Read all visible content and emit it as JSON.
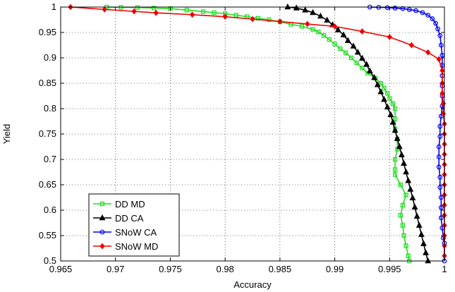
{
  "chart_data": {
    "type": "line",
    "title": "",
    "xlabel": "Accuracy",
    "ylabel": "Yield",
    "xlim": [
      0.965,
      1.0
    ],
    "ylim": [
      0.5,
      1.0
    ],
    "grid": true,
    "legend_position": "bottom-left",
    "x_ticks": [
      "0.965",
      "0.97",
      "0.975",
      "0.98",
      "0.985",
      "0.99",
      "0.995",
      "1"
    ],
    "y_ticks": [
      "0.5",
      "0.55",
      "0.6",
      "0.65",
      "0.7",
      "0.75",
      "0.8",
      "0.85",
      "0.9",
      "0.95",
      "1"
    ],
    "series": [
      {
        "name": "DD MD",
        "color": "#22dd22",
        "marker": "square",
        "points": [
          [
            0.9692,
            1.0
          ],
          [
            0.9705,
            0.9995
          ],
          [
            0.972,
            0.999
          ],
          [
            0.9735,
            0.998
          ],
          [
            0.975,
            0.997
          ],
          [
            0.9765,
            0.994
          ],
          [
            0.978,
            0.991
          ],
          [
            0.979,
            0.989
          ],
          [
            0.98,
            0.987
          ],
          [
            0.981,
            0.984
          ],
          [
            0.982,
            0.981
          ],
          [
            0.983,
            0.978
          ],
          [
            0.984,
            0.975
          ],
          [
            0.985,
            0.971
          ],
          [
            0.986,
            0.966
          ],
          [
            0.987,
            0.962
          ],
          [
            0.988,
            0.956
          ],
          [
            0.9885,
            0.951
          ],
          [
            0.989,
            0.944
          ],
          [
            0.9895,
            0.936
          ],
          [
            0.99,
            0.927
          ],
          [
            0.9905,
            0.918
          ],
          [
            0.991,
            0.91
          ],
          [
            0.9915,
            0.9
          ],
          [
            0.992,
            0.89
          ],
          [
            0.9925,
            0.88
          ],
          [
            0.993,
            0.87
          ],
          [
            0.9937,
            0.86
          ],
          [
            0.9942,
            0.85
          ],
          [
            0.9945,
            0.84
          ],
          [
            0.9948,
            0.83
          ],
          [
            0.995,
            0.82
          ],
          [
            0.9953,
            0.81
          ],
          [
            0.9955,
            0.8
          ],
          [
            0.9955,
            0.78
          ],
          [
            0.9955,
            0.76
          ],
          [
            0.9957,
            0.74
          ],
          [
            0.9957,
            0.72
          ],
          [
            0.9955,
            0.7
          ],
          [
            0.9955,
            0.68
          ],
          [
            0.9955,
            0.67
          ],
          [
            0.996,
            0.65
          ],
          [
            0.9965,
            0.63
          ],
          [
            0.9962,
            0.61
          ],
          [
            0.996,
            0.59
          ],
          [
            0.9962,
            0.57
          ],
          [
            0.9963,
            0.55
          ],
          [
            0.9965,
            0.53
          ],
          [
            0.9967,
            0.51
          ],
          [
            0.9968,
            0.5
          ]
        ]
      },
      {
        "name": "DD CA",
        "color": "#000000",
        "marker": "triangle",
        "points": [
          [
            0.9857,
            1.0
          ],
          [
            0.9865,
            0.998
          ],
          [
            0.9873,
            0.994
          ],
          [
            0.988,
            0.989
          ],
          [
            0.9887,
            0.982
          ],
          [
            0.9893,
            0.974
          ],
          [
            0.9898,
            0.965
          ],
          [
            0.9903,
            0.955
          ],
          [
            0.9908,
            0.945
          ],
          [
            0.9912,
            0.934
          ],
          [
            0.9917,
            0.923
          ],
          [
            0.9921,
            0.911
          ],
          [
            0.9925,
            0.899
          ],
          [
            0.9929,
            0.887
          ],
          [
            0.9932,
            0.874
          ],
          [
            0.9936,
            0.861
          ],
          [
            0.9939,
            0.847
          ],
          [
            0.9942,
            0.833
          ],
          [
            0.9945,
            0.818
          ],
          [
            0.9948,
            0.803
          ],
          [
            0.9951,
            0.788
          ],
          [
            0.9953,
            0.773
          ],
          [
            0.9955,
            0.757
          ],
          [
            0.9957,
            0.741
          ],
          [
            0.9959,
            0.725
          ],
          [
            0.9961,
            0.709
          ],
          [
            0.9963,
            0.692
          ],
          [
            0.9965,
            0.675
          ],
          [
            0.9967,
            0.658
          ],
          [
            0.9969,
            0.641
          ],
          [
            0.9971,
            0.624
          ],
          [
            0.9973,
            0.606
          ],
          [
            0.9975,
            0.588
          ],
          [
            0.9977,
            0.57
          ],
          [
            0.9979,
            0.552
          ],
          [
            0.9981,
            0.534
          ],
          [
            0.9983,
            0.516
          ],
          [
            0.9985,
            0.5
          ]
        ]
      },
      {
        "name": "SNoW CA",
        "color": "#0000ee",
        "marker": "circle",
        "points": [
          [
            0.9932,
            1.0
          ],
          [
            0.994,
            0.9995
          ],
          [
            0.9948,
            0.999
          ],
          [
            0.9955,
            0.998
          ],
          [
            0.9962,
            0.997
          ],
          [
            0.9968,
            0.995
          ],
          [
            0.9974,
            0.993
          ],
          [
            0.998,
            0.989
          ],
          [
            0.9985,
            0.984
          ],
          [
            0.9989,
            0.977
          ],
          [
            0.9992,
            0.968
          ],
          [
            0.9994,
            0.957
          ],
          [
            0.9996,
            0.944
          ],
          [
            0.9997,
            0.925
          ],
          [
            0.9998,
            0.905
          ],
          [
            0.9998,
            0.885
          ],
          [
            0.9998,
            0.865
          ],
          [
            0.9998,
            0.845
          ],
          [
            0.9998,
            0.825
          ],
          [
            0.9998,
            0.805
          ],
          [
            0.9997,
            0.785
          ],
          [
            0.9996,
            0.765
          ],
          [
            0.9996,
            0.745
          ],
          [
            0.9995,
            0.725
          ],
          [
            0.9995,
            0.705
          ],
          [
            0.9995,
            0.685
          ],
          [
            0.9996,
            0.665
          ],
          [
            0.9996,
            0.645
          ],
          [
            0.9997,
            0.625
          ],
          [
            0.9997,
            0.605
          ],
          [
            0.9997,
            0.585
          ],
          [
            0.9998,
            0.565
          ],
          [
            0.9999,
            0.545
          ],
          [
            1.0,
            0.535
          ],
          [
            1.0,
            0.5
          ]
        ]
      },
      {
        "name": "SNoW MD",
        "color": "#ee0000",
        "marker": "diamond",
        "points": [
          [
            0.9659,
            1.0
          ],
          [
            0.969,
            0.9953
          ],
          [
            0.9717,
            0.9915
          ],
          [
            0.9737,
            0.9886
          ],
          [
            0.977,
            0.985
          ],
          [
            0.98,
            0.981
          ],
          [
            0.9825,
            0.9762
          ],
          [
            0.985,
            0.9715
          ],
          [
            0.9875,
            0.9666
          ],
          [
            0.99,
            0.962
          ],
          [
            0.9925,
            0.952
          ],
          [
            0.995,
            0.941
          ],
          [
            0.997,
            0.925
          ],
          [
            0.9985,
            0.9107
          ],
          [
            0.9995,
            0.8974
          ],
          [
            0.9998,
            0.875
          ],
          [
            0.9998,
            0.85
          ],
          [
            0.9998,
            0.83
          ],
          [
            0.9999,
            0.81
          ],
          [
            0.9999,
            0.79
          ],
          [
            1.0,
            0.77
          ],
          [
            1.0,
            0.75
          ],
          [
            1.0,
            0.73
          ],
          [
            1.0,
            0.71
          ],
          [
            1.0,
            0.69
          ],
          [
            1.0,
            0.67
          ],
          [
            1.0,
            0.65
          ],
          [
            1.0,
            0.63
          ],
          [
            1.0,
            0.61
          ],
          [
            1.0,
            0.59
          ],
          [
            1.0,
            0.57
          ],
          [
            1.0,
            0.55
          ],
          [
            1.0,
            0.53
          ],
          [
            1.0,
            0.51
          ]
        ]
      }
    ]
  }
}
